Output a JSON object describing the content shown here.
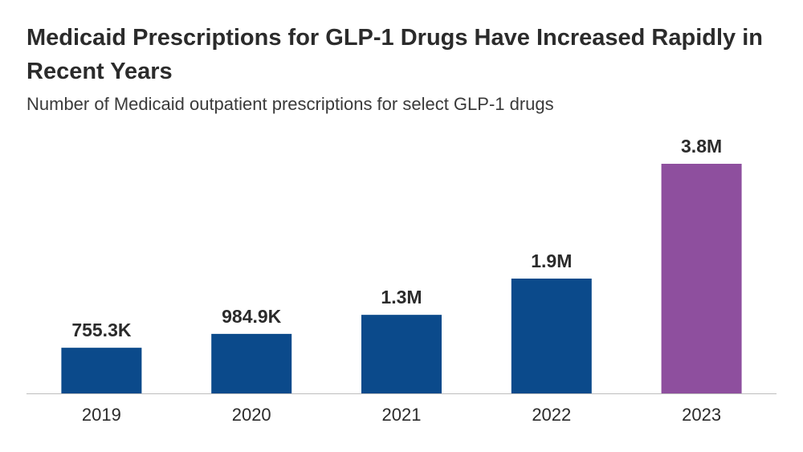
{
  "title": "Medicaid Prescriptions for GLP-1 Drugs Have Increased Rapidly in Recent Years",
  "subtitle": "Number of Medicaid outpatient prescriptions for select GLP-1 drugs",
  "colors": {
    "default_bar": "#0b4a8b",
    "highlight_bar": "#8e4f9e",
    "axis": "#bdbdbd"
  },
  "chart_data": {
    "type": "bar",
    "categories": [
      "2019",
      "2020",
      "2021",
      "2022",
      "2023"
    ],
    "values": [
      755300,
      984900,
      1300000,
      1900000,
      3800000
    ],
    "data_labels": [
      "755.3K",
      "984.9K",
      "1.3M",
      "1.9M",
      "3.8M"
    ],
    "highlight_index": 4,
    "ylim": [
      0,
      3800000
    ],
    "grid": false,
    "legend": "none",
    "xlabel": "",
    "ylabel": ""
  }
}
